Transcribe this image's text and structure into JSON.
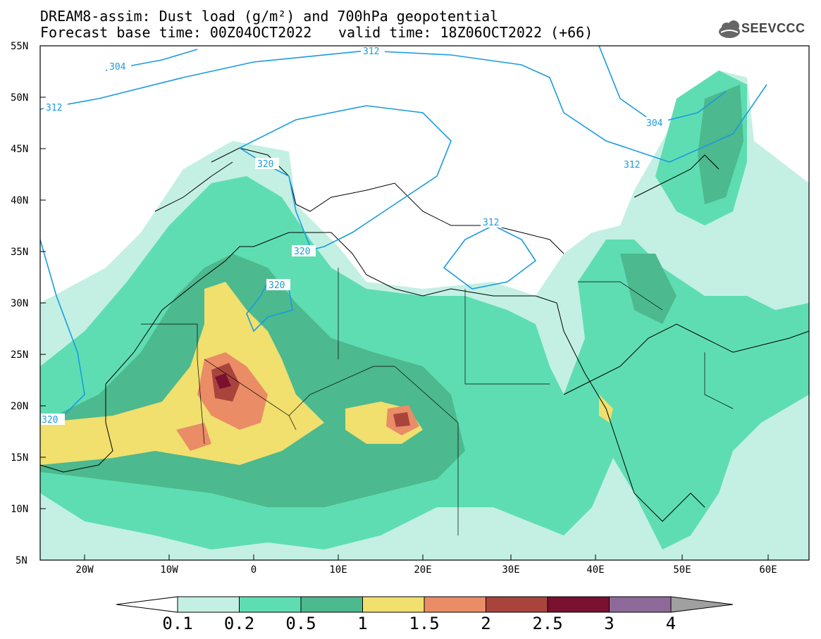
{
  "header": {
    "title": "DREAM8-assim: Dust load (g/m²) and 700hPa geopotential",
    "base_time": "Forecast base time: 00Z04OCT2022",
    "valid_time": "valid time: 18Z06OCT2022 (+66)"
  },
  "logo": {
    "text": "SEEVCCC",
    "icon": "cloud-icon"
  },
  "map": {
    "lat_labels": [
      "55N",
      "50N",
      "45N",
      "40N",
      "35N",
      "30N",
      "25N",
      "20N",
      "15N",
      "10N",
      "5N"
    ],
    "lon_labels": [
      "20W",
      "10W",
      "0",
      "10E",
      "20E",
      "30E",
      "40E",
      "50E",
      "60E"
    ],
    "contour_labels": [
      "304",
      "312",
      "312",
      "304",
      "312",
      "320",
      "320",
      "320",
      "312",
      "320"
    ],
    "contour_color": "#1a9be0"
  },
  "colorbar": {
    "levels": [
      "0.1",
      "0.2",
      "0.5",
      "1",
      "1.5",
      "2",
      "2.5",
      "3",
      "4"
    ],
    "colors": [
      "#c3f0e3",
      "#5fddb2",
      "#4cb98e",
      "#f1df6e",
      "#ea8c66",
      "#a9443c",
      "#7a1131",
      "#8d6a9a"
    ],
    "under_color": "#ffffff",
    "over_color": "#a0a0a0"
  }
}
